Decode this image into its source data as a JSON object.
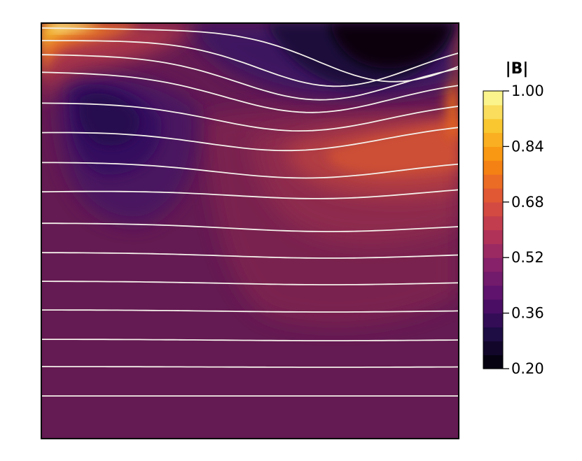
{
  "chart_data": {
    "type": "heatmap",
    "title": "",
    "colorbar": {
      "title": "|B|",
      "min": 0.2,
      "max": 1.0,
      "ticks": [
        "1.00",
        "0.84",
        "0.68",
        "0.52",
        "0.36",
        "0.20"
      ],
      "tick_values": [
        1.0,
        0.84,
        0.68,
        0.52,
        0.36,
        0.2
      ],
      "levels": 20,
      "colormap": "inferno"
    },
    "field_features": [
      {
        "region": "top-left corner",
        "value": 0.95
      },
      {
        "region": "upper-left vortex",
        "value": 0.38
      },
      {
        "region": "top-right region",
        "value": 0.2
      },
      {
        "region": "right-center lobe",
        "value": 0.72
      },
      {
        "region": "bottom (background)",
        "value": 0.49
      }
    ],
    "streamlines": {
      "count": 15,
      "color": "#f4f0ea",
      "y_start": [
        40,
        58,
        78,
        103,
        147,
        189,
        232,
        274,
        319,
        361,
        402,
        443,
        485,
        524,
        566
      ],
      "y_end": [
        48,
        57,
        85,
        112,
        144,
        176,
        228,
        265,
        319,
        361,
        402,
        443,
        485,
        524,
        566
      ],
      "dips": [
        {
          "x": 560,
          "depth": 70
        },
        {
          "x": 480,
          "depth": 66
        },
        {
          "x": 455,
          "depth": 60
        },
        {
          "x": 440,
          "depth": 52
        },
        {
          "x": 430,
          "depth": 42
        },
        {
          "x": 420,
          "depth": 34
        },
        {
          "x": 440,
          "depth": 25
        },
        {
          "x": 470,
          "depth": 16
        },
        {
          "x": 470,
          "depth": 12
        },
        {
          "x": 470,
          "depth": 8
        },
        {
          "x": 470,
          "depth": 5
        },
        {
          "x": 470,
          "depth": 3
        },
        {
          "x": 470,
          "depth": 2
        },
        {
          "x": 470,
          "depth": 1
        },
        {
          "x": 470,
          "depth": 0
        }
      ]
    },
    "colors": {
      "background_field": "#641a52",
      "frame": "#000000"
    }
  }
}
